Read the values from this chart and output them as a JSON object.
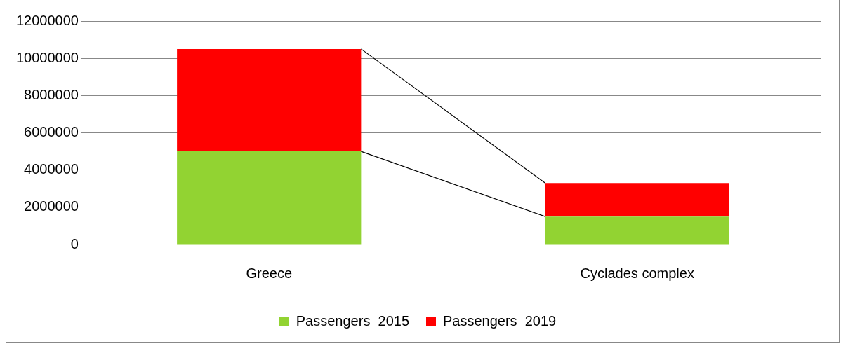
{
  "chart_data": {
    "type": "bar",
    "stacked": true,
    "categories": [
      "Greece",
      "Cyclades complex"
    ],
    "series": [
      {
        "name": "Passengers  2015",
        "color": "#92d332",
        "values": [
          5000000,
          1500000
        ]
      },
      {
        "name": "Passengers  2019",
        "color": "#ff0000",
        "values": [
          5500000,
          1800000
        ]
      }
    ],
    "ylim": [
      0,
      12000000
    ],
    "yticks": [
      0,
      2000000,
      4000000,
      6000000,
      8000000,
      10000000,
      12000000
    ],
    "grid": "y",
    "legend": "bottom"
  }
}
